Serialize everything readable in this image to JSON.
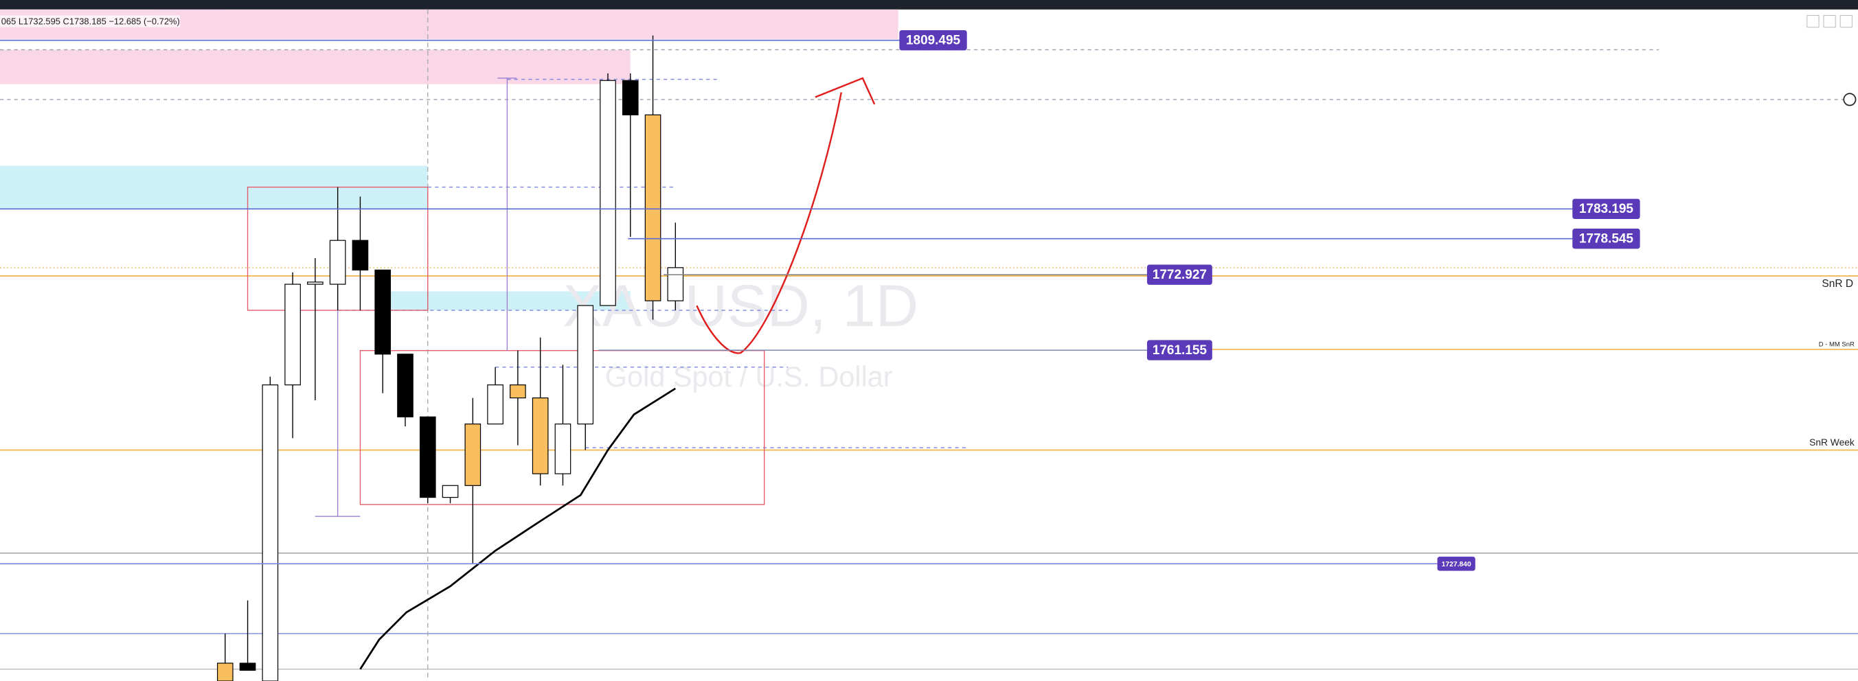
{
  "header": {
    "ohlc": "065  L1732.595  C1738.185  −12.685 (−0.72%)"
  },
  "chart_data": {
    "type": "candlestick",
    "title": "XAUUSD, 1D",
    "subtitle": "Gold Spot / U.S. Dollar",
    "ylim": [
      1709.55,
      1815.78
    ],
    "open": [
      1712.33,
      1712.33,
      1709.55,
      1755.74,
      1771.44,
      1771.44,
      1778.28,
      1773.66,
      1760.54,
      1750.75,
      1738.19,
      1740.04,
      1749.64,
      1755.74,
      1753.71,
      1741.88,
      1749.64,
      1768.12,
      1803.22,
      1797.86,
      1768.86
    ],
    "high": [
      1716.94,
      1722.12,
      1757.03,
      1773.29,
      1775.51,
      1786.59,
      1785.11,
      1773.66,
      1760.54,
      1750.75,
      1740.04,
      1753.71,
      1758.51,
      1761.1,
      1763.13,
      1758.88,
      1768.12,
      1804.33,
      1804.33,
      1810.24,
      1781.05
    ],
    "low": [
      1709.55,
      1711.22,
      1709.55,
      1747.43,
      1753.34,
      1767.38,
      1767.38,
      1754.45,
      1749.27,
      1737.27,
      1737.27,
      1727.84,
      1749.64,
      1746.32,
      1740.04,
      1740.04,
      1745.58,
      1768.12,
      1778.83,
      1765.9,
      1767.38
    ],
    "close": [
      1709.55,
      1711.22,
      1755.74,
      1771.44,
      1771.78,
      1778.28,
      1773.66,
      1760.54,
      1750.75,
      1738.19,
      1740.04,
      1749.64,
      1755.74,
      1753.71,
      1741.88,
      1749.64,
      1768.12,
      1803.22,
      1797.86,
      1768.86,
      1774.03
    ],
    "colors": [
      "#f9bf5e",
      "#000000",
      "#ffffff",
      "#ffffff",
      "#ffffff",
      "#ffffff",
      "#000000",
      "#000000",
      "#000000",
      "#000000",
      "#ffffff",
      "#f9bf5e",
      "#ffffff",
      "#f9bf5e",
      "#f9bf5e",
      "#ffffff",
      "#ffffff",
      "#ffffff",
      "#000000",
      "#f9bf5e",
      "#ffffff"
    ],
    "price_labels": [
      1809.495,
      1783.195,
      1778.545,
      1772.927,
      1761.155,
      {
        "value": 1727.84,
        "label": "1727.840"
      }
    ],
    "level_notes": [
      "SnR D",
      "D - MM SnR",
      "SnR Week"
    ]
  }
}
